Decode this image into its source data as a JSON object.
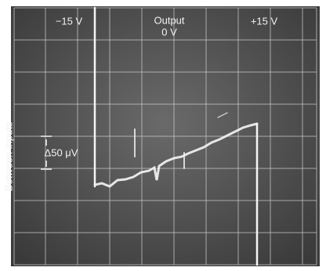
{
  "labels": {
    "negative_rail": "−15 V",
    "output_title": "Output",
    "output_zero": "0 V",
    "positive_rail": "+15 V",
    "axis_label": "Between inputs",
    "scale": "Δ50 μV"
  }
}
